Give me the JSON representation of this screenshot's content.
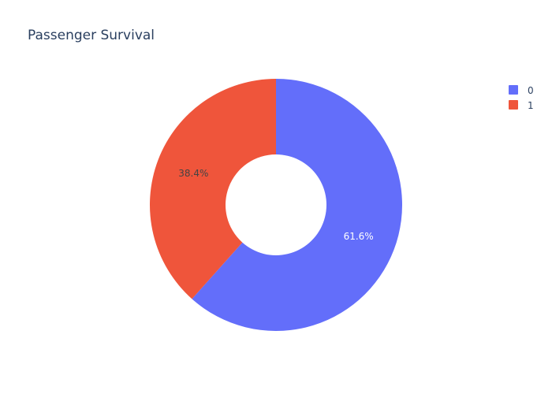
{
  "chart_data": {
    "type": "pie",
    "title": "Passenger Survival",
    "hole": 0.4,
    "categories": [
      "0",
      "1"
    ],
    "values": [
      61.6,
      38.4
    ],
    "labels": [
      "61.6%",
      "38.4%"
    ],
    "colors": [
      "#636efa",
      "#EF553B"
    ],
    "label_colors": [
      "#ffffff",
      "#444444"
    ],
    "direction": "clockwise",
    "start_angle_deg": 0,
    "legend": {
      "position": "top-right",
      "entries": [
        "0",
        "1"
      ]
    }
  }
}
